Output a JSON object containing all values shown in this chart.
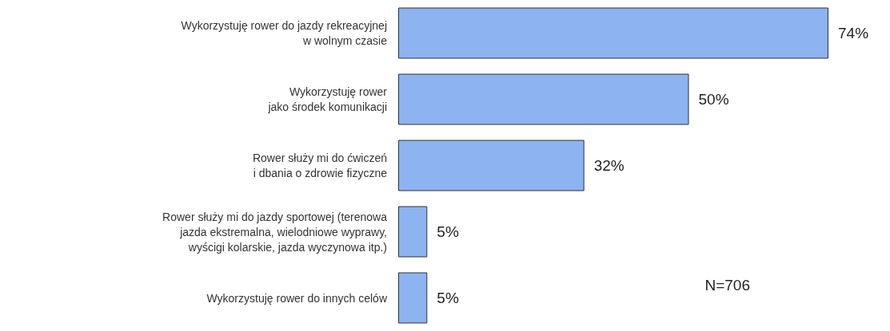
{
  "chart_data": {
    "type": "bar",
    "orientation": "horizontal",
    "categories": [
      "Wykorzystuję rower do jazdy rekreacyjnej\nw wolnym czasie",
      "Wykorzystuję rower\njako środek komunikacji",
      "Rower służy mi do ćwiczeń\ni dbania o zdrowie fizyczne",
      "Rower służy mi do jazdy sportowej (terenowa\njazda ekstremalna, wielodniowe wyprawy,\nwyścigi kolarskie, jazda wyczynowa itp.)",
      "Wykorzystuję rower do innych celów"
    ],
    "values": [
      74,
      50,
      32,
      5,
      5
    ],
    "value_labels": [
      "74%",
      "50%",
      "32%",
      "5%",
      "5%"
    ],
    "color": "#8db3f0",
    "annotations": [
      "N=706"
    ]
  }
}
